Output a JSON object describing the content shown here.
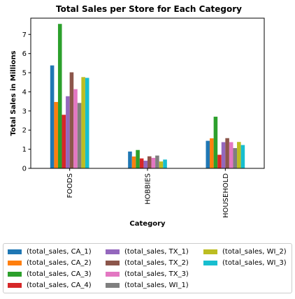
{
  "chart_data": {
    "type": "bar",
    "title": "Total Sales per Store for Each Category",
    "xlabel": "Category",
    "ylabel": "Total Sales in Millions",
    "categories": [
      "FOODS",
      "HOBBIES",
      "HOUSEHOLD"
    ],
    "ylim": [
      0,
      7.85
    ],
    "yticks": [
      "0",
      "1",
      "2",
      "3",
      "4",
      "5",
      "6",
      "7"
    ],
    "legend_position": "below",
    "series": [
      {
        "name": "(total_sales, CA_1)",
        "color": "#1f77b4",
        "values": [
          5.38,
          0.88,
          1.44
        ]
      },
      {
        "name": "(total_sales, CA_2)",
        "color": "#ff7f0e",
        "values": [
          3.47,
          0.62,
          1.57
        ]
      },
      {
        "name": "(total_sales, CA_3)",
        "color": "#2ca02c",
        "values": [
          7.55,
          0.96,
          2.7
        ]
      },
      {
        "name": "(total_sales, CA_4)",
        "color": "#d62728",
        "values": [
          2.8,
          0.52,
          0.71
        ]
      },
      {
        "name": "(total_sales, TX_1)",
        "color": "#9467bd",
        "values": [
          3.77,
          0.4,
          1.37
        ]
      },
      {
        "name": "(total_sales, TX_2)",
        "color": "#8c564b",
        "values": [
          5.02,
          0.63,
          1.58
        ]
      },
      {
        "name": "(total_sales, TX_3)",
        "color": "#e377c2",
        "values": [
          4.14,
          0.55,
          1.37
        ]
      },
      {
        "name": "(total_sales, WI_1)",
        "color": "#7f7f7f",
        "values": [
          3.42,
          0.67,
          1.06
        ]
      },
      {
        "name": "(total_sales, WI_2)",
        "color": "#bcbd22",
        "values": [
          4.77,
          0.36,
          1.38
        ]
      },
      {
        "name": "(total_sales, WI_3)",
        "color": "#17becf",
        "values": [
          4.73,
          0.46,
          1.22
        ]
      }
    ]
  }
}
